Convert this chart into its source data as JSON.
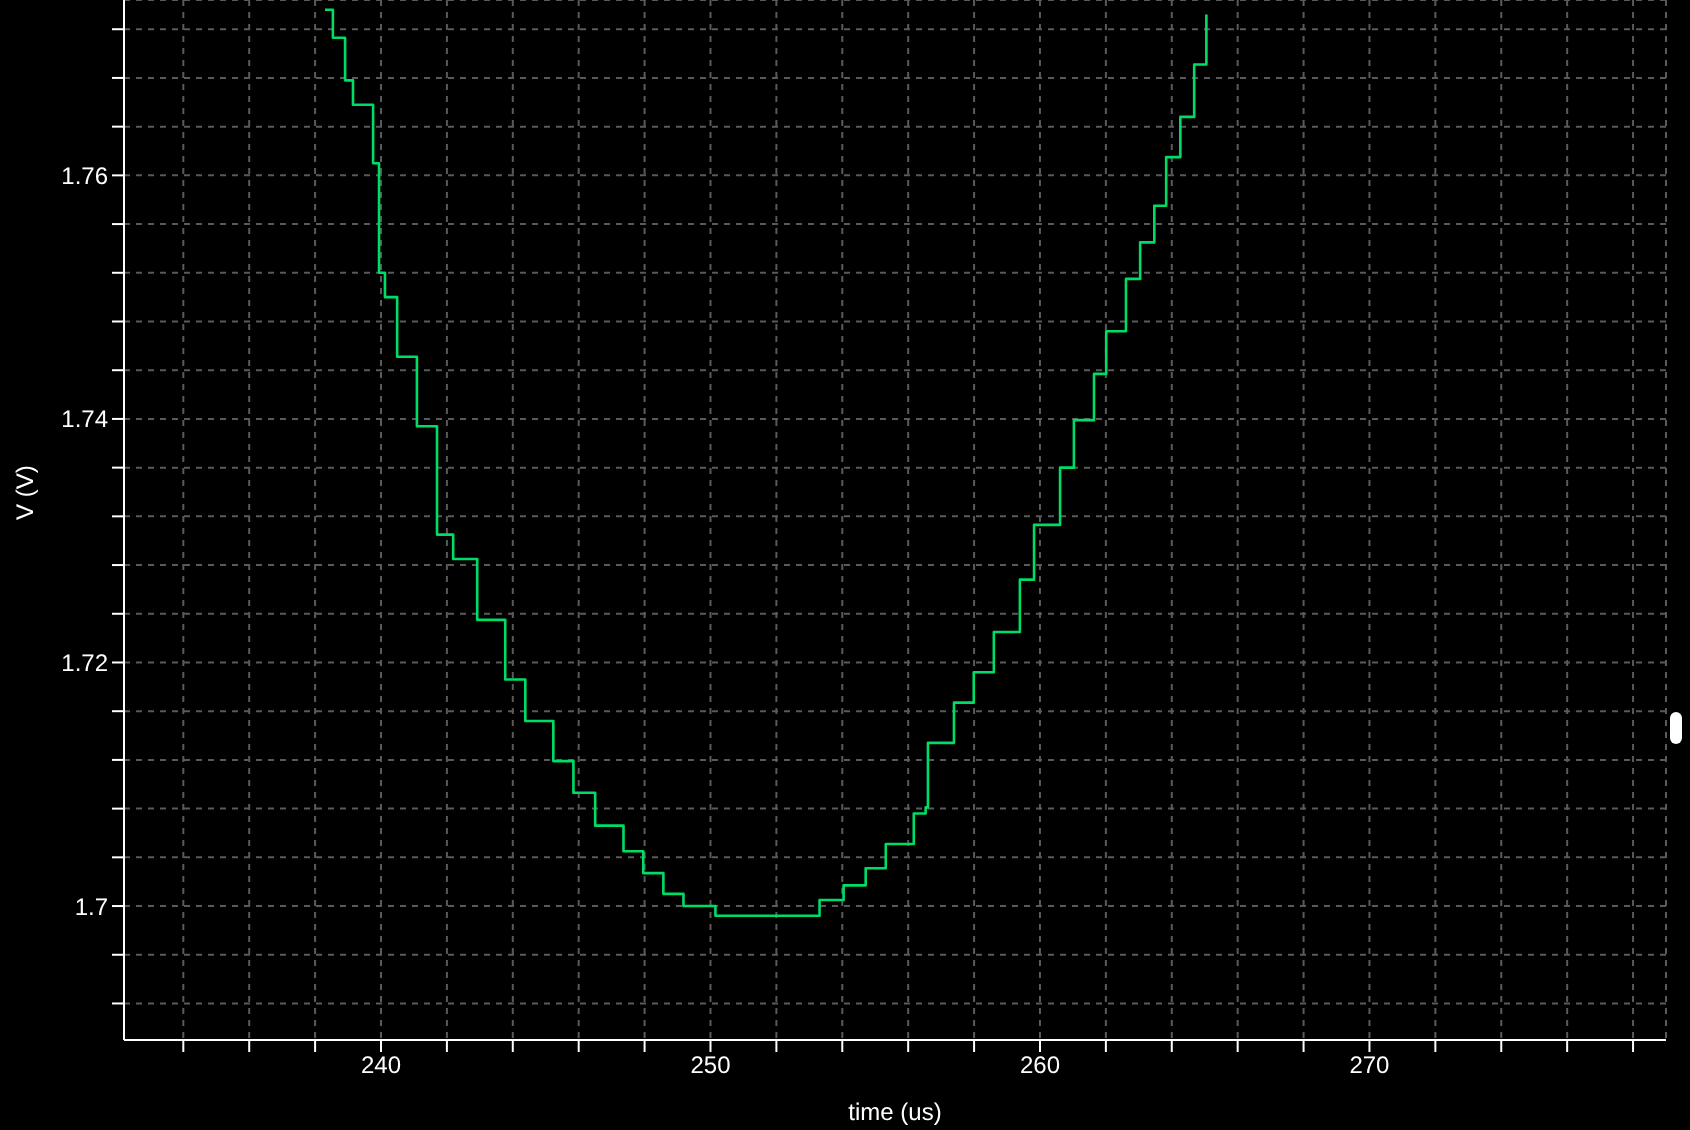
{
  "chart_data": {
    "type": "step",
    "xlabel": "time (us)",
    "ylabel": "V (V)",
    "xlim": [
      232.2,
      279.0
    ],
    "ylim": [
      1.689,
      1.7744
    ],
    "xticks": [
      {
        "value": 234,
        "label": null
      },
      {
        "value": 236,
        "label": null
      },
      {
        "value": 238,
        "label": null
      },
      240,
      {
        "value": 242,
        "label": null
      },
      {
        "value": 244,
        "label": null
      },
      {
        "value": 246,
        "label": null
      },
      {
        "value": 248,
        "label": null
      },
      250,
      {
        "value": 252,
        "label": null
      },
      {
        "value": 254,
        "label": null
      },
      {
        "value": 256,
        "label": null
      },
      {
        "value": 258,
        "label": null
      },
      260,
      {
        "value": 262,
        "label": null
      },
      {
        "value": 264,
        "label": null
      },
      {
        "value": 266,
        "label": null
      },
      {
        "value": 268,
        "label": null
      },
      270,
      {
        "value": 272,
        "label": null
      },
      {
        "value": 274,
        "label": null
      },
      {
        "value": 276,
        "label": null
      },
      {
        "value": 278,
        "label": null
      }
    ],
    "yticks": [
      {
        "value": 1.692,
        "label": null
      },
      {
        "value": 1.696,
        "label": null
      },
      {
        "value": 1.7,
        "label": "1.7"
      },
      {
        "value": 1.704,
        "label": null
      },
      {
        "value": 1.708,
        "label": null
      },
      {
        "value": 1.712,
        "label": null
      },
      {
        "value": 1.716,
        "label": null
      },
      1.72,
      {
        "value": 1.724,
        "label": null
      },
      {
        "value": 1.728,
        "label": null
      },
      {
        "value": 1.732,
        "label": null
      },
      {
        "value": 1.736,
        "label": null
      },
      1.74,
      {
        "value": 1.744,
        "label": null
      },
      {
        "value": 1.748,
        "label": null
      },
      {
        "value": 1.752,
        "label": null
      },
      {
        "value": 1.756,
        "label": null
      },
      1.76,
      {
        "value": 1.764,
        "label": null
      },
      {
        "value": 1.768,
        "label": null
      },
      {
        "value": 1.772,
        "label": null
      }
    ],
    "grid": true,
    "marker": "none",
    "line_style": "solid",
    "x": [
      238.3,
      238.54,
      238.91,
      239.15,
      239.76,
      239.94,
      240.12,
      240.49,
      241.09,
      241.7,
      242.19,
      242.92,
      243.77,
      244.38,
      245.23,
      245.84,
      246.5,
      247.36,
      247.96,
      248.57,
      249.18,
      250.15,
      252.52,
      253.31,
      254.04,
      254.71,
      255.32,
      256.17,
      256.53,
      256.6,
      257.39,
      257.99,
      258.6,
      259.39,
      259.82,
      260.61,
      261.03,
      261.64,
      262.01,
      262.61,
      263.04,
      263.47,
      263.83,
      264.26,
      264.68,
      265.05
    ],
    "series": [
      {
        "color": "#00dd66",
        "values": [
          1.7736,
          1.7713,
          1.7678,
          1.7658,
          1.761,
          1.752,
          1.75,
          1.7451,
          1.7394,
          1.7305,
          1.7285,
          1.7235,
          1.7186,
          1.7152,
          1.7119,
          1.7093,
          1.7066,
          1.7045,
          1.7027,
          1.701,
          1.7,
          1.6992,
          1.6992,
          1.7005,
          1.7017,
          1.7031,
          1.7051,
          1.7076,
          1.7081,
          1.7134,
          1.7167,
          1.7192,
          1.7225,
          1.7268,
          1.7313,
          1.736,
          1.7399,
          1.7437,
          1.7472,
          1.7515,
          1.7545,
          1.7575,
          1.7615,
          1.7648,
          1.7691,
          1.7732
        ]
      }
    ]
  }
}
